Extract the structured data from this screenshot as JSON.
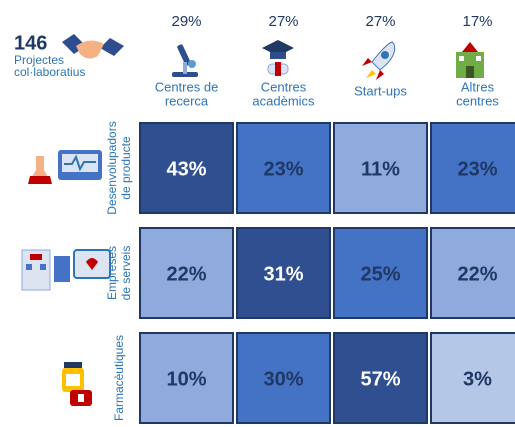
{
  "summary": {
    "count": "146",
    "label_lines": [
      "Projectes",
      "col·laboratius"
    ]
  },
  "columns": [
    {
      "share": "29%",
      "label_lines": [
        "Centres de",
        "recerca"
      ]
    },
    {
      "share": "27%",
      "label_lines": [
        "Centres",
        "acadèmics"
      ]
    },
    {
      "share": "27%",
      "label_lines": [
        "Start-ups"
      ]
    },
    {
      "share": "17%",
      "label_lines": [
        "Altres",
        "centres"
      ]
    }
  ],
  "rows": [
    {
      "label_lines": [
        "Desenvolupadors",
        "de producte"
      ],
      "cells": [
        "43%",
        "23%",
        "11%",
        "23%"
      ],
      "colors": [
        "#2f4f91",
        "#4472c4",
        "#8faadc",
        "#4472c4"
      ]
    },
    {
      "label_lines": [
        "Empreses",
        "de serveis"
      ],
      "cells": [
        "22%",
        "31%",
        "25%",
        "22%"
      ],
      "colors": [
        "#8faadc",
        "#2f4f91",
        "#4472c4",
        "#8faadc"
      ]
    },
    {
      "label_lines": [
        "Farmacèutiques"
      ],
      "cells": [
        "10%",
        "30%",
        "57%",
        "3%"
      ],
      "colors": [
        "#8faadc",
        "#4472c4",
        "#2f4f91",
        "#b4c7e7"
      ]
    }
  ]
}
